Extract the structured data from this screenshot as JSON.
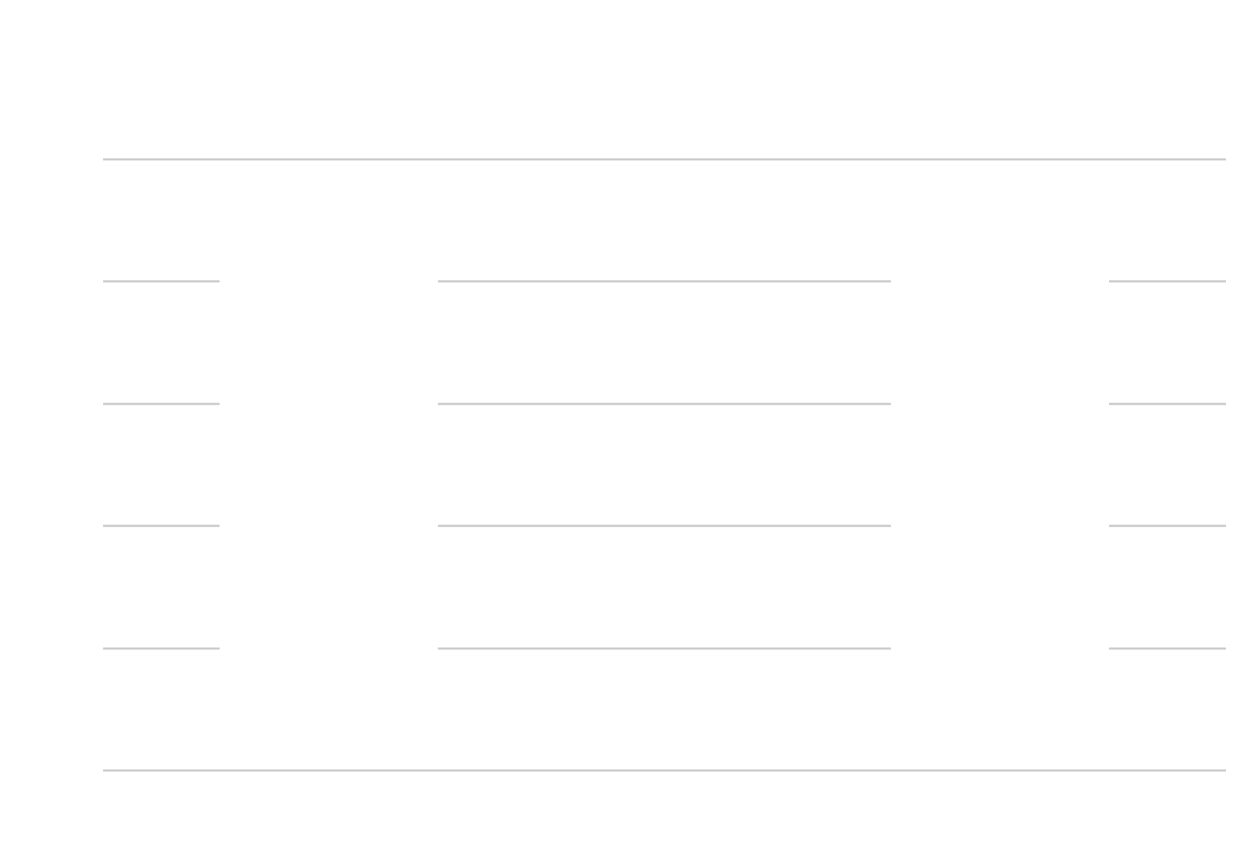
{
  "chart_data": {
    "type": "bar",
    "title": "",
    "xlabel": "",
    "ylabel": "",
    "categories": [],
    "series": [],
    "grid": true,
    "gridline_count": 6,
    "colors": {
      "background": "#ffffff",
      "gridline": "#c8c8c8"
    }
  }
}
